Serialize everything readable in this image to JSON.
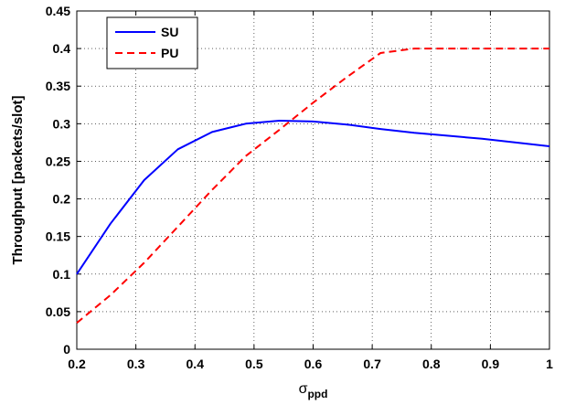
{
  "chart_data": {
    "type": "line",
    "xlabel": "σ",
    "xlabel_subscript": "ppd",
    "ylabel": "Throughput [packets/slot]",
    "xlim": [
      0.2,
      1
    ],
    "ylim": [
      0,
      0.45
    ],
    "xticks": [
      "0.2",
      "0.3",
      "0.4",
      "0.5",
      "0.6",
      "0.7",
      "0.8",
      "0.9",
      "1"
    ],
    "yticks": [
      "0",
      "0.05",
      "0.1",
      "0.15",
      "0.2",
      "0.25",
      "0.3",
      "0.35",
      "0.4",
      "0.45"
    ],
    "grid": true,
    "legend_position": "top-left",
    "series": [
      {
        "name": "SU",
        "color": "#0000ff",
        "style": "solid",
        "x": [
          0.2,
          0.257,
          0.314,
          0.371,
          0.429,
          0.486,
          0.543,
          0.6,
          0.657,
          0.714,
          0.771,
          0.829,
          0.886,
          0.943,
          1.0
        ],
        "y": [
          0.1,
          0.167,
          0.225,
          0.266,
          0.289,
          0.3,
          0.304,
          0.303,
          0.299,
          0.293,
          0.288,
          0.284,
          0.28,
          0.275,
          0.27
        ]
      },
      {
        "name": "PU",
        "color": "#ff0000",
        "style": "dashed",
        "x": [
          0.2,
          0.257,
          0.314,
          0.371,
          0.429,
          0.486,
          0.543,
          0.6,
          0.657,
          0.714,
          0.771,
          0.829,
          0.886,
          0.943,
          1.0
        ],
        "y": [
          0.035,
          0.072,
          0.115,
          0.163,
          0.212,
          0.257,
          0.292,
          0.328,
          0.362,
          0.394,
          0.4,
          0.4,
          0.4,
          0.4,
          0.4
        ]
      }
    ]
  }
}
